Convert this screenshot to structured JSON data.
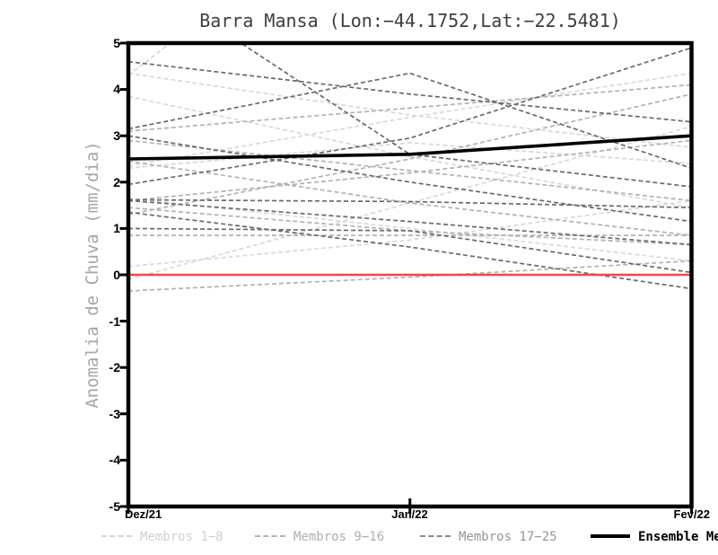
{
  "title": "Barra Mansa (Lon:−44.1752,Lat:−22.5481)",
  "axes": {
    "y_label": "Anomalia de Chuva (mm/dia)",
    "y_ticks": [
      "5",
      "4",
      "3",
      "2",
      "1",
      "0",
      "-1",
      "-2",
      "-3",
      "-4",
      "-5"
    ],
    "x_ticks": [
      "Dez/21",
      "Jan/22",
      "Fev/22"
    ]
  },
  "legend": [
    {
      "label": "Membros 1−8",
      "line_color": "#d4d4d4",
      "text_color": "#d0d0d0",
      "style": "dashed"
    },
    {
      "label": "Membros 9−16",
      "line_color": "#b2b2b2",
      "text_color": "#aeaeae",
      "style": "dashed"
    },
    {
      "label": "Membros 17−25",
      "line_color": "#8a8a8a",
      "text_color": "#969696",
      "style": "dashed"
    },
    {
      "label": "Ensemble Mean",
      "line_color": "#000000",
      "text_color": "#000000",
      "style": "solid"
    }
  ],
  "colors": {
    "frame": "#000000",
    "zero_line": "#f54545",
    "members_light": "#d9d9d9",
    "members_medium": "#b2b2b2",
    "members_dark": "#6a6a6a",
    "mean": "#000000",
    "title_text": "#3e3e3e",
    "axis_label_text": "#a6a6a6"
  },
  "chart_data": {
    "type": "line",
    "title": "Barra Mansa (Lon:−44.1752,Lat:−22.5481)",
    "xlabel": "",
    "ylabel": "Anomalia de Chuva (mm/dia)",
    "x": [
      "Dez/21",
      "Jan/22",
      "Fev/22"
    ],
    "ylim": [
      -5,
      5
    ],
    "grid": false,
    "legend_position": "bottom",
    "zero_line": {
      "value": 0,
      "color": "#f54545"
    },
    "ensemble_mean": {
      "name": "Ensemble Mean",
      "color": "#000000",
      "values": [
        2.5,
        2.6,
        3.0
      ]
    },
    "groups": [
      {
        "name": "Membros 1-8",
        "color": "#d9d9d9",
        "style": "dashed",
        "members": [
          [
            4.3,
            9.0,
            9.0
          ],
          [
            4.35,
            3.45,
            2.75
          ],
          [
            3.85,
            2.55,
            1.45
          ],
          [
            2.35,
            3.4,
            4.35
          ],
          [
            2.3,
            2.85,
            2.4
          ],
          [
            1.65,
            1.0,
            0.3
          ],
          [
            -0.1,
            1.55,
            3.2
          ],
          [
            0.18,
            0.75,
            1.6
          ]
        ]
      },
      {
        "name": "Membros 9-16",
        "color": "#b2b2b2",
        "style": "dashed",
        "members": [
          [
            1.6,
            2.2,
            2.9
          ],
          [
            1.45,
            0.95,
            0.65
          ],
          [
            2.9,
            2.25,
            1.6
          ],
          [
            0.85,
            0.85,
            0.85
          ],
          [
            -0.35,
            -0.05,
            0.3
          ],
          [
            1.3,
            2.5,
            3.9
          ],
          [
            3.1,
            3.6,
            4.1
          ],
          [
            2.45,
            1.55,
            0.85
          ]
        ]
      },
      {
        "name": "Membros 17-25",
        "color": "#6a6a6a",
        "style": "dashed",
        "members": [
          [
            4.6,
            3.9,
            3.3
          ],
          [
            6.6,
            2.6,
            1.9
          ],
          [
            3.15,
            4.35,
            2.3
          ],
          [
            3.0,
            2.0,
            1.15
          ],
          [
            1.95,
            2.95,
            4.9
          ],
          [
            1.6,
            1.15,
            0.65
          ],
          [
            1.35,
            0.6,
            -0.3
          ],
          [
            1.0,
            0.95,
            0.05
          ],
          [
            1.62,
            1.58,
            1.45
          ]
        ]
      }
    ]
  }
}
